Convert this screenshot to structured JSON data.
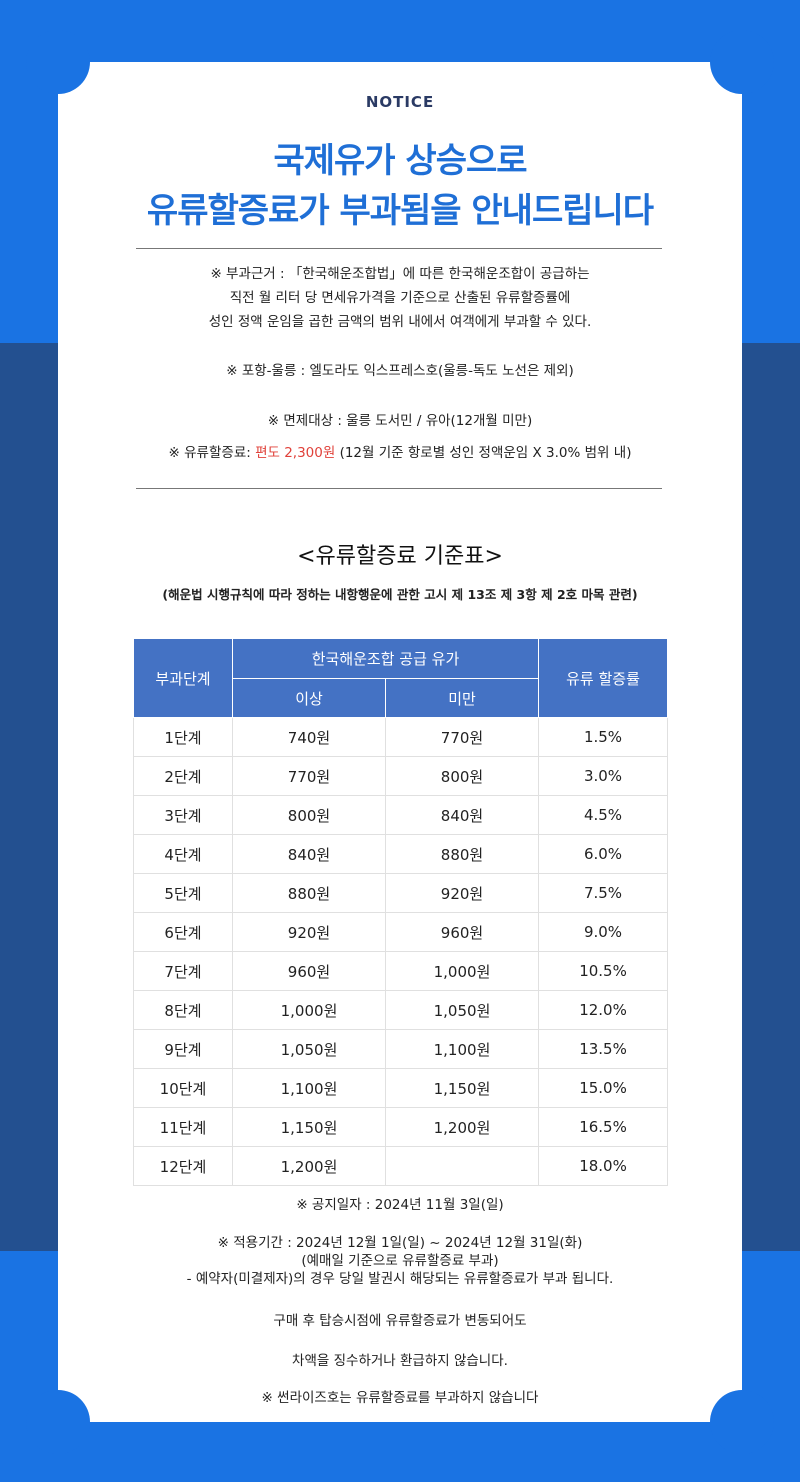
{
  "header": {
    "notice": "NOTICE",
    "title_line1": "국제유가 상승으로",
    "title_line2": "유류할증료가 부과됨을 안내드립니다"
  },
  "info": {
    "basis_line1": "※ 부과근거 : 「한국해운조합법」에 따른 한국해운조합이 공급하는",
    "basis_line2": "직전 월 리터 당 면세유가격을 기준으로 산출된 유류할증률에",
    "basis_line3": "성인 정액 운임을 곱한 금액의 범위 내에서 여객에게 부과할 수 있다.",
    "route": "※ 포항-울릉 : 엘도라도 익스프레스호(울릉-독도 노선은 제외)",
    "exempt": "※ 면제대상 : 울릉 도서민 / 유아(12개월 미만)",
    "fee_prefix": "※ 유류할증료: ",
    "fee_amount": "편도 2,300원",
    "fee_suffix": " (12월 기준 항로별 성인 정액운임 X 3.0% 범위 내)"
  },
  "table_section": {
    "title": "<유류할증료 기준표>",
    "subtitle": "(해운법 시행규칙에 따라 정하는 내항행운에 관한 고시 제 13조 제 3항 제 2호 마목 관련)"
  },
  "table": {
    "headers": {
      "stage": "부과단계",
      "supply": "한국해운조합 공급 유가",
      "min": "이상",
      "max": "미만",
      "rate": "유류 할증률"
    },
    "rows": [
      {
        "stage": "1단계",
        "min": "740원",
        "max": "770원",
        "rate": "1.5%"
      },
      {
        "stage": "2단계",
        "min": "770원",
        "max": "800원",
        "rate": "3.0%"
      },
      {
        "stage": "3단계",
        "min": "800원",
        "max": "840원",
        "rate": "4.5%"
      },
      {
        "stage": "4단계",
        "min": "840원",
        "max": "880원",
        "rate": "6.0%"
      },
      {
        "stage": "5단계",
        "min": "880원",
        "max": "920원",
        "rate": "7.5%"
      },
      {
        "stage": "6단계",
        "min": "920원",
        "max": "960원",
        "rate": "9.0%"
      },
      {
        "stage": "7단계",
        "min": "960원",
        "max": "1,000원",
        "rate": "10.5%"
      },
      {
        "stage": "8단계",
        "min": "1,000원",
        "max": "1,050원",
        "rate": "12.0%"
      },
      {
        "stage": "9단계",
        "min": "1,050원",
        "max": "1,100원",
        "rate": "13.5%"
      },
      {
        "stage": "10단계",
        "min": "1,100원",
        "max": "1,150원",
        "rate": "15.0%"
      },
      {
        "stage": "11단계",
        "min": "1,150원",
        "max": "1,200원",
        "rate": "16.5%"
      },
      {
        "stage": "12단계",
        "min": "1,200원",
        "max": "",
        "rate": "18.0%"
      }
    ]
  },
  "footer": {
    "notice_date": "※ 공지일자 : 2024년 11월 3일(일)",
    "period": "※ 적용기간 : 2024년 12월 1일(일) ~ 2024년 12월 31일(화)",
    "period_note": "(예매일 기준으로 유류할증료 부과)",
    "reservation": "- 예약자(미결제자)의 경우 당일 발권시 해당되는 유류할증료가 부과 됩니다.",
    "no_refund_1": "구매 후 탑승시점에 유류할증료가 변동되어도",
    "no_refund_2": "차액을 징수하거나 환급하지 않습니다.",
    "sunrise": "※ 썬라이즈호는 유류할증료를 부과하지 않습니다"
  },
  "colors": {
    "background": "#1a73e3",
    "band": "#235090",
    "title": "#1f6fd6",
    "table_header": "#4472c4",
    "highlight": "#e0413a"
  }
}
